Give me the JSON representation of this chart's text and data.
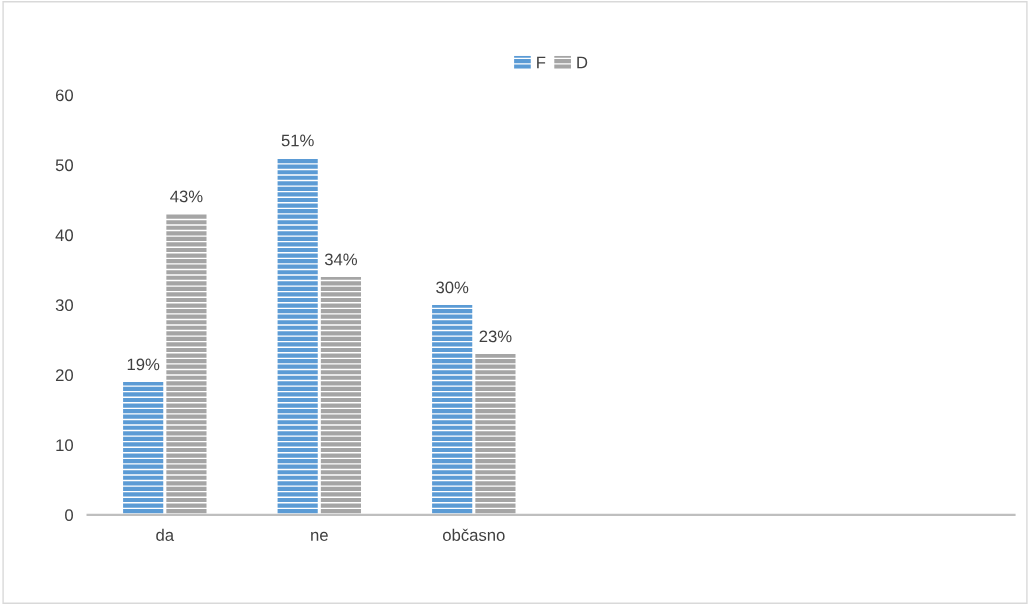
{
  "chart_data": {
    "type": "bar",
    "categories": [
      "da",
      "ne",
      "občasno",
      null,
      null,
      null
    ],
    "series": [
      {
        "name": "F",
        "color": "#5b9bd5",
        "values": [
          19,
          51,
          30,
          null,
          null,
          null
        ],
        "value_labels": [
          "19%",
          "51%",
          "30%",
          null,
          null,
          null
        ]
      },
      {
        "name": "D",
        "color": "#a5a5a5",
        "values": [
          43,
          34,
          23,
          null,
          null,
          null
        ],
        "value_labels": [
          "43%",
          "34%",
          "23%",
          null,
          null,
          null
        ]
      }
    ],
    "ylim": [
      0,
      60
    ],
    "yticks": [
      0,
      10,
      20,
      30,
      40,
      50,
      60
    ],
    "grid": false,
    "legend": "top"
  }
}
